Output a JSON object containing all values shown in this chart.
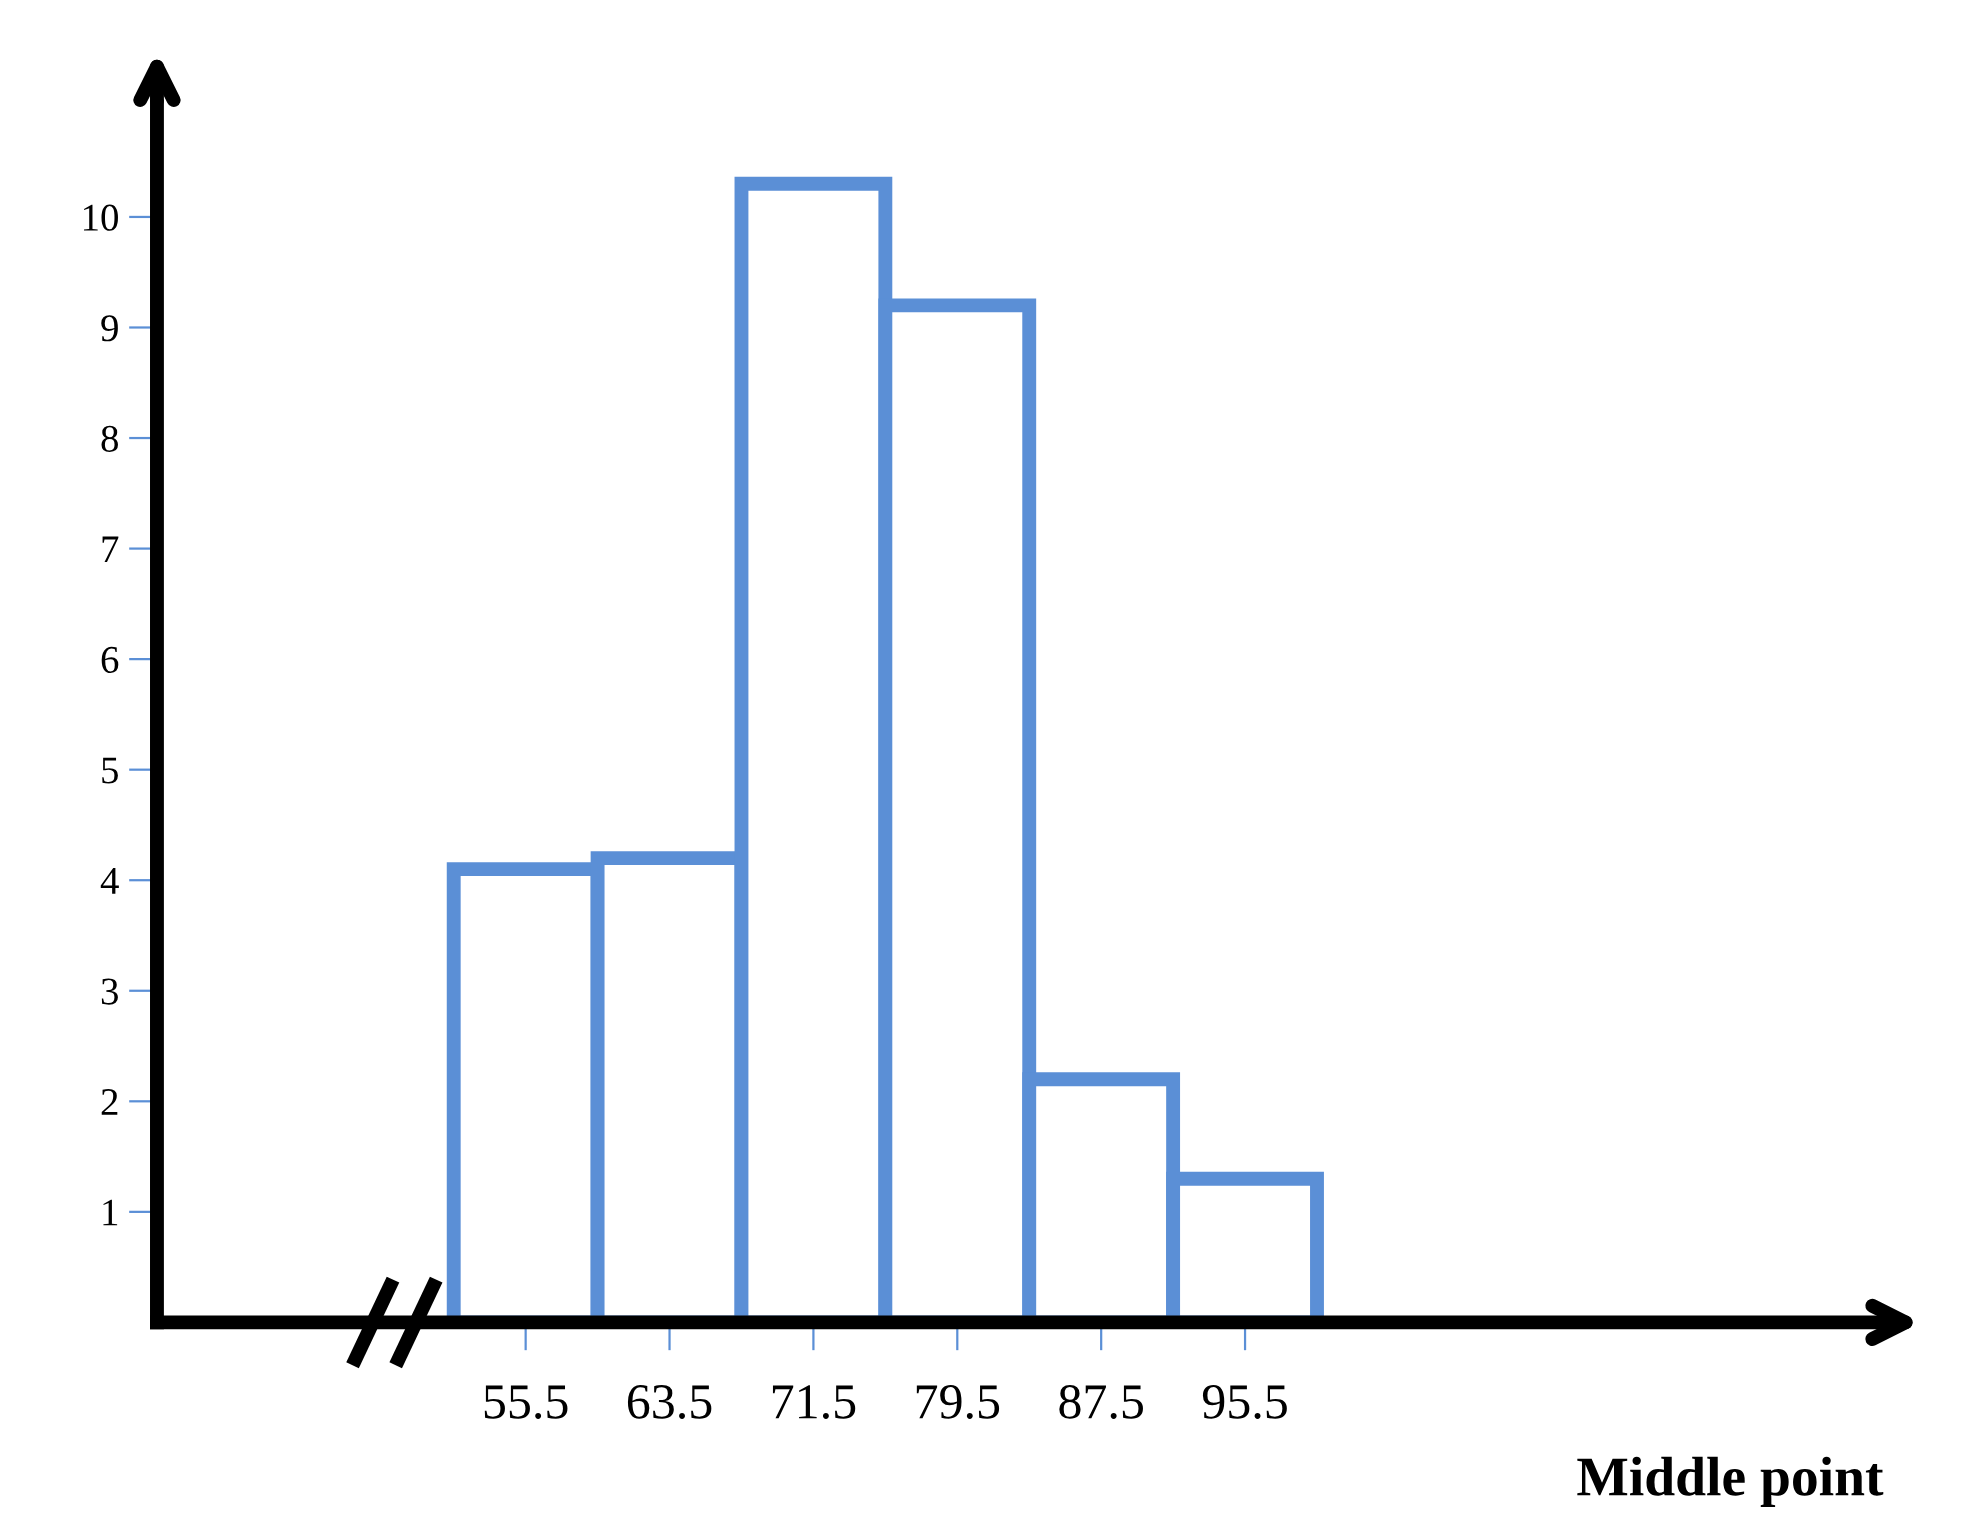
{
  "chart_data": {
    "type": "histogram",
    "bins": [
      51.5,
      59.5,
      67.5,
      75.5,
      83.5,
      91.5,
      99.5
    ],
    "values": [
      4.1,
      4.2,
      10.3,
      9.2,
      2.2,
      1.3
    ],
    "color": "#5b8fd6",
    "xlabel": "Middle point",
    "xlim": [
      35,
      131
    ],
    "xticks": [
      55.5,
      63.5,
      71.5,
      79.5,
      87.5,
      95.5
    ],
    "ylim": [
      0,
      11
    ],
    "yticks": [
      1,
      2,
      3,
      4,
      5,
      6,
      7,
      8,
      9,
      10
    ]
  }
}
